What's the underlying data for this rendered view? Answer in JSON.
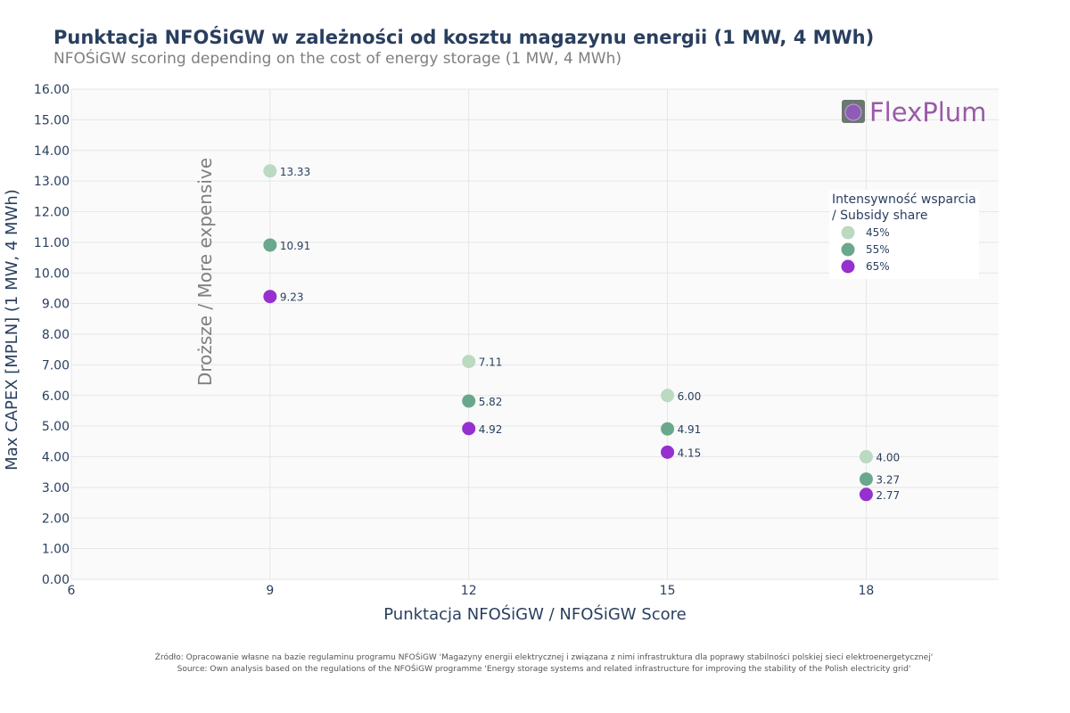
{
  "title": "Punktacja NFOŚiGW w zależności od kosztu magazynu energii (1 MW, 4 MWh)",
  "subtitle": "NFOŚiGW scoring depending on the cost of energy storage (1 MW, 4 MWh)",
  "source_pl": "Źródło: Opracowanie własne na bazie regulaminu programu NFOŚiGW 'Magazyny energii elektrycznej i związana z nimi infrastruktura dla poprawy stabilności polskiej sieci elektroenergetycznej'",
  "source_en": "Source: Own analysis based on the regulations of the NFOŚiGW programme 'Energy storage systems and related infrastructure for improving the stability of the Polish electricity grid'",
  "logo_text": "FlexPlum",
  "colors": {
    "s45": "#bcd9c2",
    "s55": "#6aa88d",
    "s65": "#9630cf",
    "grid": "#e6e6e6",
    "plot_bg": "#fafafa",
    "text": "#2a3f5f",
    "logo": "#9a5aa8"
  },
  "chart_data": {
    "type": "scatter",
    "xlabel": "Punktacja NFOŚiGW / NFOŚiGW Score",
    "ylabel": "Max CAPEX [MPLN] (1 MW, 4 MWh)",
    "xlim": [
      6,
      20
    ],
    "ylim": [
      0,
      16
    ],
    "xticks": [
      6,
      9,
      12,
      15,
      18
    ],
    "yticks": [
      0,
      1,
      2,
      3,
      4,
      5,
      6,
      7,
      8,
      9,
      10,
      11,
      12,
      13,
      14,
      15,
      16
    ],
    "grid": true,
    "annotation": "Droższe / More expensive",
    "legend": {
      "title_line1": "Intensywność wsparcia",
      "title_line2": "/ Subsidy share",
      "placement": "right"
    },
    "series": [
      {
        "name": "45%",
        "color": "#bcd9c2",
        "x": [
          9,
          12,
          15,
          18
        ],
        "y": [
          13.33,
          7.11,
          6.0,
          4.0
        ],
        "labels": [
          "13.33",
          "7.11",
          "6.00",
          "4.00"
        ]
      },
      {
        "name": "55%",
        "color": "#6aa88d",
        "x": [
          9,
          12,
          15,
          18
        ],
        "y": [
          10.91,
          5.82,
          4.91,
          3.27
        ],
        "labels": [
          "10.91",
          "5.82",
          "4.91",
          "3.27"
        ]
      },
      {
        "name": "65%",
        "color": "#9630cf",
        "x": [
          9,
          12,
          15,
          18
        ],
        "y": [
          9.23,
          4.92,
          4.15,
          2.77
        ],
        "labels": [
          "9.23",
          "4.92",
          "4.15",
          "2.77"
        ]
      }
    ]
  }
}
